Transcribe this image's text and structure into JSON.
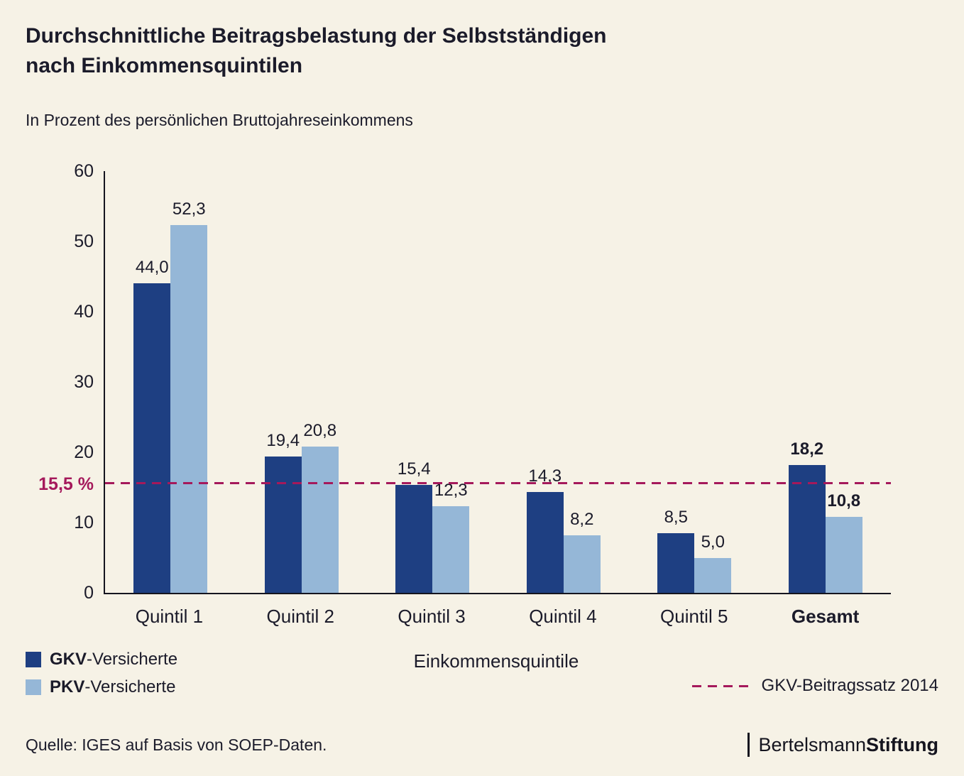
{
  "title": {
    "line1": "Durchschnittliche Beitragsbelastung der Selbstständigen",
    "line2": "nach Einkommensquintilen"
  },
  "subtitle": "In Prozent des persönlichen Bruttojahreseinkommens",
  "chart_data": {
    "type": "bar",
    "categories": [
      "Quintil 1",
      "Quintil 2",
      "Quintil 3",
      "Quintil 4",
      "Quintil 5",
      "Gesamt"
    ],
    "series": [
      {
        "name": "GKV-Versicherte",
        "key": "gkv",
        "color": "#1e3f82",
        "values": [
          44.0,
          19.4,
          15.4,
          14.3,
          8.5,
          18.2
        ],
        "labels": [
          "44,0",
          "19,4",
          "15,4",
          "14,3",
          "8,5",
          "18,2"
        ]
      },
      {
        "name": "PKV-Versicherte",
        "key": "pkv",
        "color": "#95b7d7",
        "values": [
          52.3,
          20.8,
          12.3,
          8.2,
          5.0,
          10.8
        ],
        "labels": [
          "52,3",
          "20,8",
          "12,3",
          "8,2",
          "5,0",
          "10,8"
        ]
      }
    ],
    "ylim": [
      0,
      60
    ],
    "yticks": [
      0,
      10,
      20,
      30,
      40,
      50,
      60
    ],
    "xlabel": "Einkommensquintile",
    "bold_category": "Gesamt",
    "reference_line": {
      "value": 15.5,
      "label": "15,5 %",
      "legend": "GKV-Beitragssatz 2014",
      "color": "#a5195b"
    },
    "grid": false,
    "legend_position": "bottom"
  },
  "legend": {
    "items": [
      {
        "prefix": "GKV",
        "suffix": "-Versicherte"
      },
      {
        "prefix": "PKV",
        "suffix": "-Versicherte"
      }
    ]
  },
  "footer": {
    "source": "Quelle: IGES auf Basis von SOEP-Daten.",
    "logo_regular": "Bertelsmann",
    "logo_bold": "Stiftung"
  }
}
